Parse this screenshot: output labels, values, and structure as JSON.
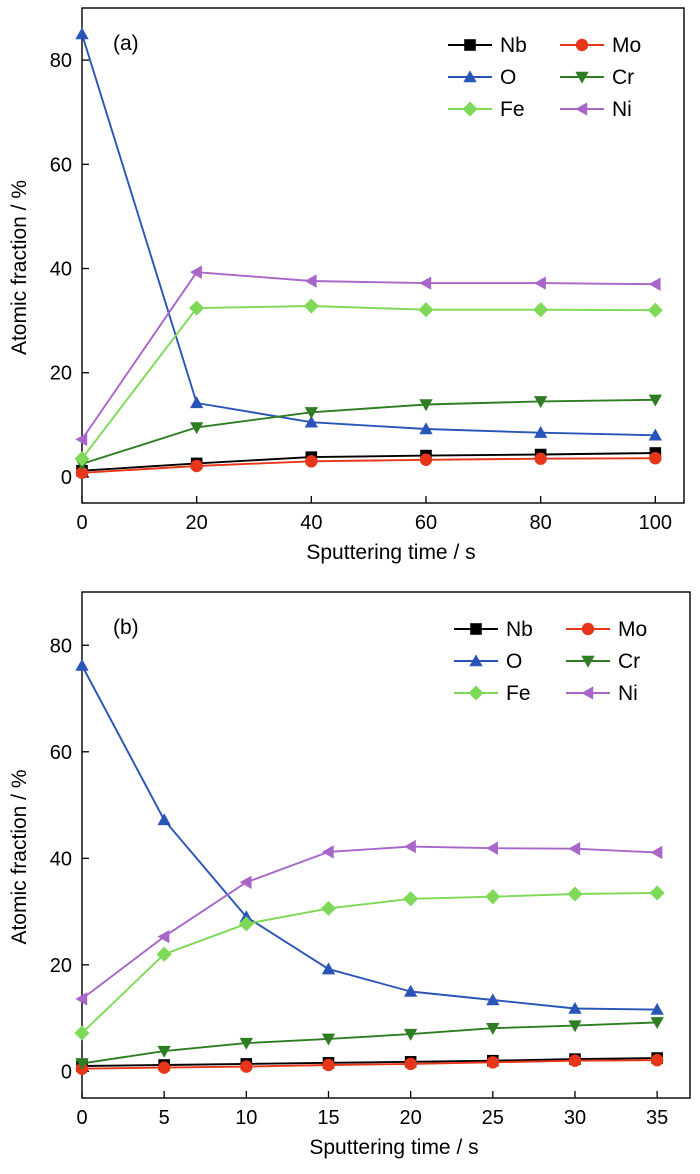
{
  "chart_data": [
    {
      "type": "line",
      "panel_label": "(a)",
      "xlabel": "Sputtering time / s",
      "ylabel": "Atomic fraction / %",
      "xlim": [
        0,
        105
      ],
      "ylim": [
        -5,
        90
      ],
      "xticks": [
        0,
        20,
        40,
        60,
        80,
        100
      ],
      "yticks": [
        0,
        20,
        40,
        60,
        80
      ],
      "x": [
        0,
        20,
        40,
        60,
        80,
        100
      ],
      "legend_position": "top-right",
      "grid": false,
      "series": [
        {
          "name": "Nb",
          "color": "#000000",
          "marker": "square",
          "values": [
            1.2,
            2.6,
            3.8,
            4.1,
            4.3,
            4.6
          ]
        },
        {
          "name": "Mo",
          "color": "#e8361a",
          "marker": "circle",
          "values": [
            0.8,
            2.1,
            3.0,
            3.3,
            3.5,
            3.6
          ]
        },
        {
          "name": "O",
          "color": "#2a55b8",
          "marker": "triangle-up",
          "values": [
            85.0,
            14.2,
            10.5,
            9.2,
            8.5,
            8.0
          ]
        },
        {
          "name": "Cr",
          "color": "#2e7d22",
          "marker": "triangle-down",
          "values": [
            2.5,
            9.5,
            12.4,
            13.9,
            14.5,
            14.8
          ]
        },
        {
          "name": "Fe",
          "color": "#7ed957",
          "marker": "diamond",
          "values": [
            3.5,
            32.4,
            32.8,
            32.1,
            32.1,
            32.0
          ]
        },
        {
          "name": "Ni",
          "color": "#a866c9",
          "marker": "triangle-left",
          "values": [
            7.2,
            39.3,
            37.6,
            37.2,
            37.2,
            37.0
          ]
        }
      ]
    },
    {
      "type": "line",
      "panel_label": "(b)",
      "xlabel": "Sputtering time / s",
      "ylabel": "Atomic fraction / %",
      "xlim": [
        0,
        37
      ],
      "ylim": [
        -5,
        90
      ],
      "xticks": [
        0,
        5,
        10,
        15,
        20,
        25,
        30,
        35
      ],
      "yticks": [
        0,
        20,
        40,
        60,
        80
      ],
      "x": [
        0,
        5,
        10,
        15,
        20,
        25,
        30,
        35
      ],
      "legend_position": "top-right",
      "grid": false,
      "series": [
        {
          "name": "Nb",
          "color": "#000000",
          "marker": "square",
          "values": [
            1.0,
            1.2,
            1.4,
            1.6,
            1.8,
            2.0,
            2.3,
            2.5
          ]
        },
        {
          "name": "Mo",
          "color": "#e8361a",
          "marker": "circle",
          "values": [
            0.5,
            0.7,
            0.9,
            1.2,
            1.4,
            1.7,
            2.0,
            2.1
          ]
        },
        {
          "name": "O",
          "color": "#2a55b8",
          "marker": "triangle-up",
          "values": [
            76.2,
            47.2,
            29.0,
            19.2,
            15.0,
            13.4,
            11.8,
            11.6
          ]
        },
        {
          "name": "Cr",
          "color": "#2e7d22",
          "marker": "triangle-down",
          "values": [
            1.5,
            3.8,
            5.3,
            6.1,
            7.0,
            8.1,
            8.6,
            9.2
          ]
        },
        {
          "name": "Fe",
          "color": "#7ed957",
          "marker": "diamond",
          "values": [
            7.2,
            22.0,
            27.7,
            30.6,
            32.4,
            32.8,
            33.3,
            33.5
          ]
        },
        {
          "name": "Ni",
          "color": "#a866c9",
          "marker": "triangle-left",
          "values": [
            13.6,
            25.3,
            35.5,
            41.2,
            42.2,
            41.9,
            41.8,
            41.1
          ]
        }
      ]
    }
  ]
}
